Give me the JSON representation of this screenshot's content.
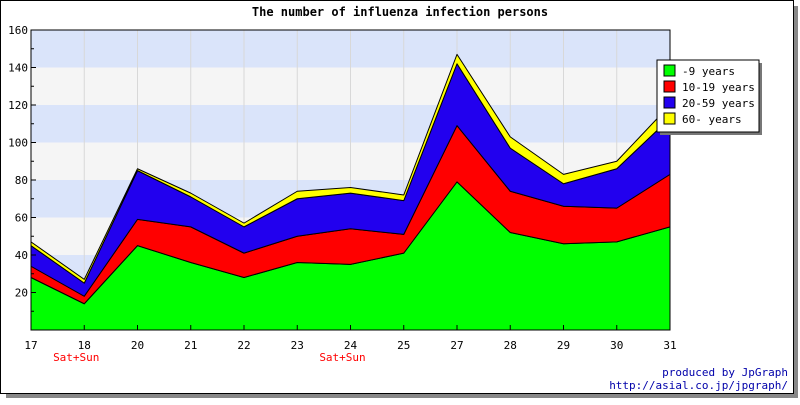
{
  "chart_data": {
    "type": "area",
    "stacked": true,
    "title": "The number of influenza infection persons",
    "xlabel": "",
    "ylabel": "",
    "categories": [
      "17",
      "18",
      "20",
      "21",
      "22",
      "23",
      "24",
      "25",
      "27",
      "28",
      "29",
      "30",
      "31"
    ],
    "category_notes": [
      {
        "category": "18",
        "text": "Sat+Sun"
      },
      {
        "category": "24",
        "text": "Sat+Sun"
      }
    ],
    "ylim": [
      0,
      160
    ],
    "yticks": [
      20,
      40,
      60,
      80,
      100,
      120,
      140,
      160
    ],
    "grid": true,
    "legend_position": "top-right",
    "series": [
      {
        "name": "-9 years",
        "color": "#00ff00",
        "values": [
          28,
          14,
          45,
          36,
          28,
          36,
          35,
          41,
          79,
          52,
          46,
          47,
          55
        ]
      },
      {
        "name": "10-19 years",
        "color": "#ff0000",
        "values": [
          6,
          4,
          14,
          19,
          13,
          14,
          19,
          10,
          30,
          22,
          20,
          18,
          28
        ]
      },
      {
        "name": "20-59 years",
        "color": "#2200ee",
        "values": [
          11,
          7,
          26,
          16,
          14,
          20,
          19,
          18,
          33,
          23,
          12,
          21,
          30
        ]
      },
      {
        "name": "60- years",
        "color": "#ffff00",
        "values": [
          2,
          2,
          1,
          2,
          2,
          4,
          3,
          3,
          5,
          6,
          5,
          4,
          7
        ]
      }
    ]
  },
  "footer": {
    "credit": "produced by JpGraph",
    "url": "http://asial.co.jp/jpgraph/"
  },
  "colors": {
    "band_light": "#f5f5f5",
    "band_blue": "#dae4fa",
    "note_red": "#ff0000",
    "credit_blue": "#0000aa"
  }
}
